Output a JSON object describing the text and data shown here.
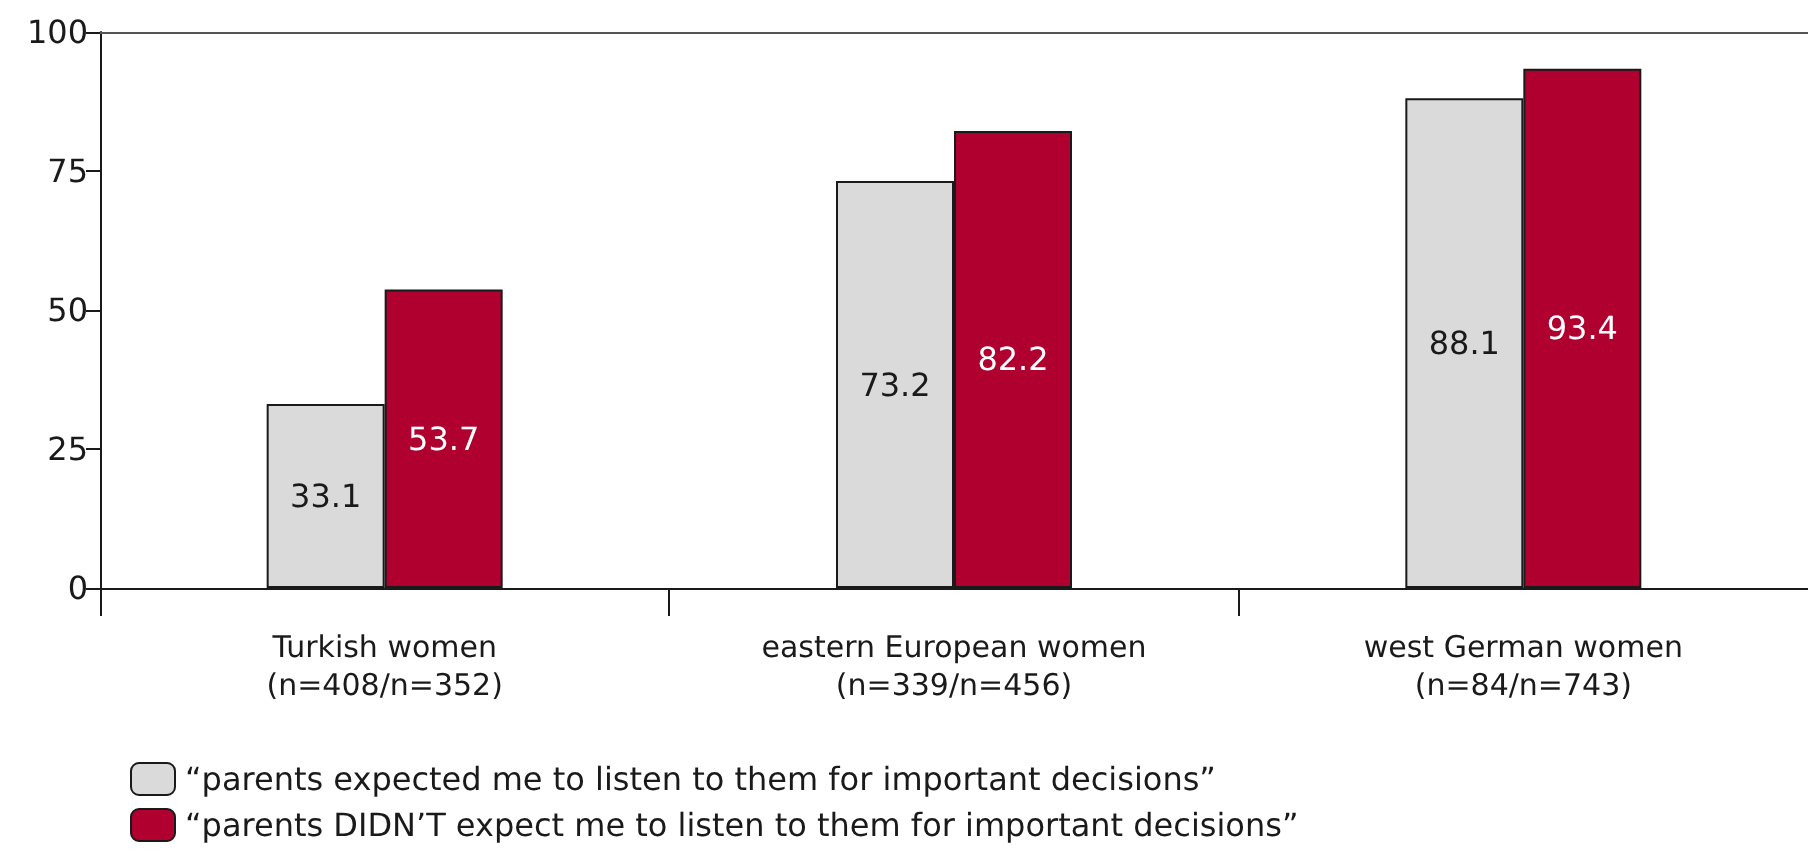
{
  "chart_data": {
    "type": "bar",
    "categories": [
      "Turkish women\n(n=408/n=352)",
      "eastern European women\n(n=339/n=456)",
      "west German women\n(n=84/n=743)"
    ],
    "series": [
      {
        "name": "“parents expected me to listen to them for important decisions”",
        "color": "#d9dad9",
        "values": [
          33.1,
          73.2,
          88.1
        ]
      },
      {
        "name": "“parents DIDN’T expect me to listen to them for important decisions”",
        "color": "#b0002f",
        "values": [
          53.7,
          82.2,
          93.4
        ]
      }
    ],
    "ylim": [
      0,
      100
    ],
    "yticks": [
      0,
      25,
      50,
      75,
      100
    ],
    "grid": false,
    "legend": "bottom left",
    "data_labels": true
  }
}
